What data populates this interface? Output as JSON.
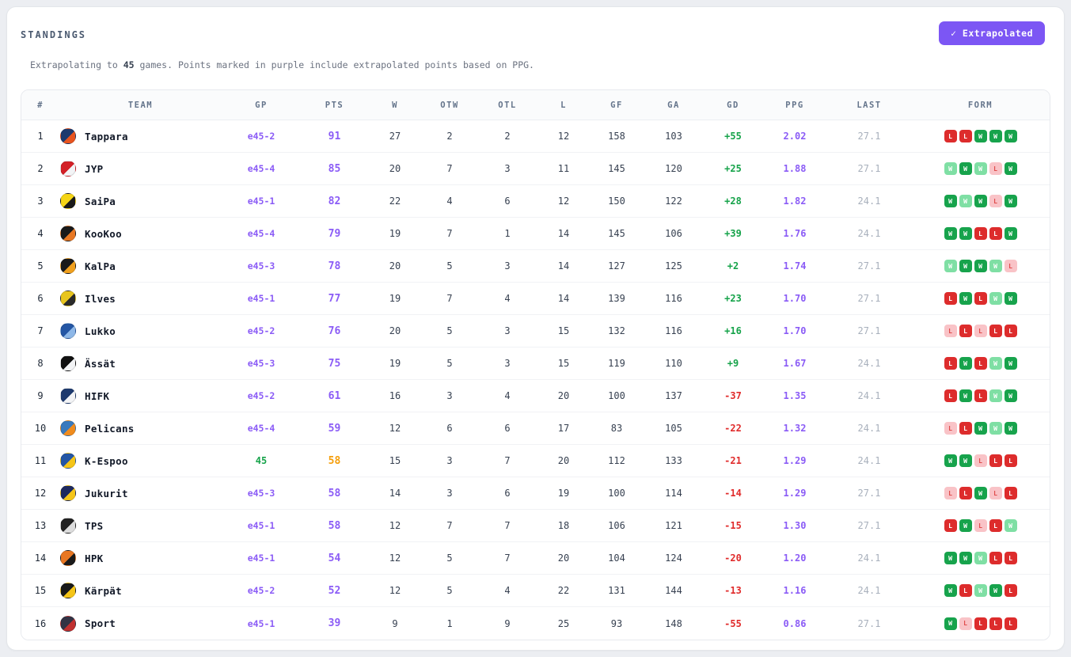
{
  "header": {
    "title": "STANDINGS",
    "button_label": "✓ Extrapolated"
  },
  "subtitle": {
    "prefix": "Extrapolating to ",
    "games": "45",
    "suffix": " games. Points marked in purple include extrapolated points based on PPG."
  },
  "colors": {
    "accent_purple": "#7c56f4",
    "text_purple": "#8b5cf6",
    "positive_green": "#16a34a",
    "negative_red": "#e02b2b",
    "highlight_orange": "#f59e0b",
    "muted_gray": "#a8b0bc",
    "win_solid": "#17a34c",
    "win_light": "#7fdfa4",
    "loss_solid": "#dd2c2c",
    "loss_light": "#f9c3c7"
  },
  "table": {
    "columns": [
      "#",
      "TEAM",
      "GP",
      "PTS",
      "W",
      "OTW",
      "OTL",
      "L",
      "GF",
      "GA",
      "GD",
      "PPG",
      "LAST",
      "FORM"
    ],
    "rows": [
      {
        "rank": "1",
        "team": "Tappara",
        "logo": [
          "#1e3a6e",
          "#e8541f"
        ],
        "gp": "e45-2",
        "gp_style": "extrapolated",
        "pts": "91",
        "pts_style": "purple",
        "w": "27",
        "otw": "2",
        "otl": "2",
        "l": "12",
        "gf": "158",
        "ga": "103",
        "gd": "+55",
        "ppg": "2.02",
        "last": "27.1",
        "form": [
          {
            "result": "L",
            "variant": "solid"
          },
          {
            "result": "L",
            "variant": "solid"
          },
          {
            "result": "W",
            "variant": "solid"
          },
          {
            "result": "W",
            "variant": "solid"
          },
          {
            "result": "W",
            "variant": "solid"
          }
        ]
      },
      {
        "rank": "2",
        "team": "JYP",
        "logo": [
          "#d32027",
          "#f3f4f6"
        ],
        "gp": "e45-4",
        "gp_style": "extrapolated",
        "pts": "85",
        "pts_style": "purple",
        "w": "20",
        "otw": "7",
        "otl": "3",
        "l": "11",
        "gf": "145",
        "ga": "120",
        "gd": "+25",
        "ppg": "1.88",
        "last": "27.1",
        "form": [
          {
            "result": "W",
            "variant": "light"
          },
          {
            "result": "W",
            "variant": "solid"
          },
          {
            "result": "W",
            "variant": "light"
          },
          {
            "result": "L",
            "variant": "light"
          },
          {
            "result": "W",
            "variant": "solid"
          }
        ]
      },
      {
        "rank": "3",
        "team": "SaiPa",
        "logo": [
          "#f5d516",
          "#1a1a1a"
        ],
        "gp": "e45-1",
        "gp_style": "extrapolated",
        "pts": "82",
        "pts_style": "purple",
        "w": "22",
        "otw": "4",
        "otl": "6",
        "l": "12",
        "gf": "150",
        "ga": "122",
        "gd": "+28",
        "ppg": "1.82",
        "last": "24.1",
        "form": [
          {
            "result": "W",
            "variant": "solid"
          },
          {
            "result": "W",
            "variant": "light"
          },
          {
            "result": "W",
            "variant": "solid"
          },
          {
            "result": "L",
            "variant": "light"
          },
          {
            "result": "W",
            "variant": "solid"
          }
        ]
      },
      {
        "rank": "4",
        "team": "KooKoo",
        "logo": [
          "#1a1a1a",
          "#e87722"
        ],
        "gp": "e45-4",
        "gp_style": "extrapolated",
        "pts": "79",
        "pts_style": "purple",
        "w": "19",
        "otw": "7",
        "otl": "1",
        "l": "14",
        "gf": "145",
        "ga": "106",
        "gd": "+39",
        "ppg": "1.76",
        "last": "24.1",
        "form": [
          {
            "result": "W",
            "variant": "solid"
          },
          {
            "result": "W",
            "variant": "solid"
          },
          {
            "result": "L",
            "variant": "solid"
          },
          {
            "result": "L",
            "variant": "solid"
          },
          {
            "result": "W",
            "variant": "solid"
          }
        ]
      },
      {
        "rank": "5",
        "team": "KalPa",
        "logo": [
          "#1a1a1a",
          "#f0a01e"
        ],
        "gp": "e45-3",
        "gp_style": "extrapolated",
        "pts": "78",
        "pts_style": "purple",
        "w": "20",
        "otw": "5",
        "otl": "3",
        "l": "14",
        "gf": "127",
        "ga": "125",
        "gd": "+2",
        "ppg": "1.74",
        "last": "27.1",
        "form": [
          {
            "result": "W",
            "variant": "light"
          },
          {
            "result": "W",
            "variant": "solid"
          },
          {
            "result": "W",
            "variant": "solid"
          },
          {
            "result": "W",
            "variant": "light"
          },
          {
            "result": "L",
            "variant": "light"
          }
        ]
      },
      {
        "rank": "6",
        "team": "Ilves",
        "logo": [
          "#e8c51e",
          "#2a2a2a"
        ],
        "gp": "e45-1",
        "gp_style": "extrapolated",
        "pts": "77",
        "pts_style": "purple",
        "w": "19",
        "otw": "7",
        "otl": "4",
        "l": "14",
        "gf": "139",
        "ga": "116",
        "gd": "+23",
        "ppg": "1.70",
        "last": "27.1",
        "form": [
          {
            "result": "L",
            "variant": "solid"
          },
          {
            "result": "W",
            "variant": "solid"
          },
          {
            "result": "L",
            "variant": "solid"
          },
          {
            "result": "W",
            "variant": "light"
          },
          {
            "result": "W",
            "variant": "solid"
          }
        ]
      },
      {
        "rank": "7",
        "team": "Lukko",
        "logo": [
          "#2456a4",
          "#8eb8e8"
        ],
        "gp": "e45-2",
        "gp_style": "extrapolated",
        "pts": "76",
        "pts_style": "purple",
        "w": "20",
        "otw": "5",
        "otl": "3",
        "l": "15",
        "gf": "132",
        "ga": "116",
        "gd": "+16",
        "ppg": "1.70",
        "last": "27.1",
        "form": [
          {
            "result": "L",
            "variant": "light"
          },
          {
            "result": "L",
            "variant": "solid"
          },
          {
            "result": "L",
            "variant": "light"
          },
          {
            "result": "L",
            "variant": "solid"
          },
          {
            "result": "L",
            "variant": "solid"
          }
        ]
      },
      {
        "rank": "8",
        "team": "Ässät",
        "logo": [
          "#111111",
          "#f3f4f6"
        ],
        "gp": "e45-3",
        "gp_style": "extrapolated",
        "pts": "75",
        "pts_style": "purple",
        "w": "19",
        "otw": "5",
        "otl": "3",
        "l": "15",
        "gf": "119",
        "ga": "110",
        "gd": "+9",
        "ppg": "1.67",
        "last": "24.1",
        "form": [
          {
            "result": "L",
            "variant": "solid"
          },
          {
            "result": "W",
            "variant": "solid"
          },
          {
            "result": "L",
            "variant": "solid"
          },
          {
            "result": "W",
            "variant": "light"
          },
          {
            "result": "W",
            "variant": "solid"
          }
        ]
      },
      {
        "rank": "9",
        "team": "HIFK",
        "logo": [
          "#1e3a6e",
          "#f3f4f6"
        ],
        "gp": "e45-2",
        "gp_style": "extrapolated",
        "pts": "61",
        "pts_style": "purple",
        "w": "16",
        "otw": "3",
        "otl": "4",
        "l": "20",
        "gf": "100",
        "ga": "137",
        "gd": "-37",
        "ppg": "1.35",
        "last": "24.1",
        "form": [
          {
            "result": "L",
            "variant": "solid"
          },
          {
            "result": "W",
            "variant": "solid"
          },
          {
            "result": "L",
            "variant": "solid"
          },
          {
            "result": "W",
            "variant": "light"
          },
          {
            "result": "W",
            "variant": "solid"
          }
        ]
      },
      {
        "rank": "10",
        "team": "Pelicans",
        "logo": [
          "#3a7abd",
          "#f08c1e"
        ],
        "gp": "e45-4",
        "gp_style": "extrapolated",
        "pts": "59",
        "pts_style": "purple",
        "w": "12",
        "otw": "6",
        "otl": "6",
        "l": "17",
        "gf": "83",
        "ga": "105",
        "gd": "-22",
        "ppg": "1.32",
        "last": "24.1",
        "form": [
          {
            "result": "L",
            "variant": "light"
          },
          {
            "result": "L",
            "variant": "solid"
          },
          {
            "result": "W",
            "variant": "solid"
          },
          {
            "result": "W",
            "variant": "light"
          },
          {
            "result": "W",
            "variant": "solid"
          }
        ]
      },
      {
        "rank": "11",
        "team": "K-Espoo",
        "logo": [
          "#2456a4",
          "#f5c518"
        ],
        "gp": "45",
        "gp_style": "actual",
        "pts": "58",
        "pts_style": "orange",
        "w": "15",
        "otw": "3",
        "otl": "7",
        "l": "20",
        "gf": "112",
        "ga": "133",
        "gd": "-21",
        "ppg": "1.29",
        "last": "24.1",
        "form": [
          {
            "result": "W",
            "variant": "solid"
          },
          {
            "result": "W",
            "variant": "solid"
          },
          {
            "result": "L",
            "variant": "light"
          },
          {
            "result": "L",
            "variant": "solid"
          },
          {
            "result": "L",
            "variant": "solid"
          }
        ]
      },
      {
        "rank": "12",
        "team": "Jukurit",
        "logo": [
          "#1e2a5e",
          "#f5c518"
        ],
        "gp": "e45-3",
        "gp_style": "extrapolated",
        "pts": "58",
        "pts_style": "purple",
        "w": "14",
        "otw": "3",
        "otl": "6",
        "l": "19",
        "gf": "100",
        "ga": "114",
        "gd": "-14",
        "ppg": "1.29",
        "last": "27.1",
        "form": [
          {
            "result": "L",
            "variant": "light"
          },
          {
            "result": "L",
            "variant": "solid"
          },
          {
            "result": "W",
            "variant": "solid"
          },
          {
            "result": "L",
            "variant": "light"
          },
          {
            "result": "L",
            "variant": "solid"
          }
        ]
      },
      {
        "rank": "13",
        "team": "TPS",
        "logo": [
          "#222222",
          "#dddddd"
        ],
        "gp": "e45-1",
        "gp_style": "extrapolated",
        "pts": "58",
        "pts_style": "purple",
        "w": "12",
        "otw": "7",
        "otl": "7",
        "l": "18",
        "gf": "106",
        "ga": "121",
        "gd": "-15",
        "ppg": "1.30",
        "last": "27.1",
        "form": [
          {
            "result": "L",
            "variant": "solid"
          },
          {
            "result": "W",
            "variant": "solid"
          },
          {
            "result": "L",
            "variant": "light"
          },
          {
            "result": "L",
            "variant": "solid"
          },
          {
            "result": "W",
            "variant": "light"
          }
        ]
      },
      {
        "rank": "14",
        "team": "HPK",
        "logo": [
          "#e87722",
          "#1a1a1a"
        ],
        "gp": "e45-1",
        "gp_style": "extrapolated",
        "pts": "54",
        "pts_style": "purple",
        "w": "12",
        "otw": "5",
        "otl": "7",
        "l": "20",
        "gf": "104",
        "ga": "124",
        "gd": "-20",
        "ppg": "1.20",
        "last": "24.1",
        "form": [
          {
            "result": "W",
            "variant": "solid"
          },
          {
            "result": "W",
            "variant": "solid"
          },
          {
            "result": "W",
            "variant": "light"
          },
          {
            "result": "L",
            "variant": "solid"
          },
          {
            "result": "L",
            "variant": "solid"
          }
        ]
      },
      {
        "rank": "15",
        "team": "Kärpät",
        "logo": [
          "#1a1a1a",
          "#f5c518"
        ],
        "gp": "e45-2",
        "gp_style": "extrapolated",
        "pts": "52",
        "pts_style": "purple",
        "w": "12",
        "otw": "5",
        "otl": "4",
        "l": "22",
        "gf": "131",
        "ga": "144",
        "gd": "-13",
        "ppg": "1.16",
        "last": "24.1",
        "form": [
          {
            "result": "W",
            "variant": "solid"
          },
          {
            "result": "L",
            "variant": "solid"
          },
          {
            "result": "W",
            "variant": "light"
          },
          {
            "result": "W",
            "variant": "solid"
          },
          {
            "result": "L",
            "variant": "solid"
          }
        ]
      },
      {
        "rank": "16",
        "team": "Sport",
        "logo": [
          "#333344",
          "#c03030"
        ],
        "gp": "e45-1",
        "gp_style": "extrapolated",
        "pts": "39",
        "pts_style": "purple",
        "w": "9",
        "otw": "1",
        "otl": "9",
        "l": "25",
        "gf": "93",
        "ga": "148",
        "gd": "-55",
        "ppg": "0.86",
        "last": "27.1",
        "form": [
          {
            "result": "W",
            "variant": "solid"
          },
          {
            "result": "L",
            "variant": "light"
          },
          {
            "result": "L",
            "variant": "solid"
          },
          {
            "result": "L",
            "variant": "solid"
          },
          {
            "result": "L",
            "variant": "solid"
          }
        ]
      }
    ]
  }
}
